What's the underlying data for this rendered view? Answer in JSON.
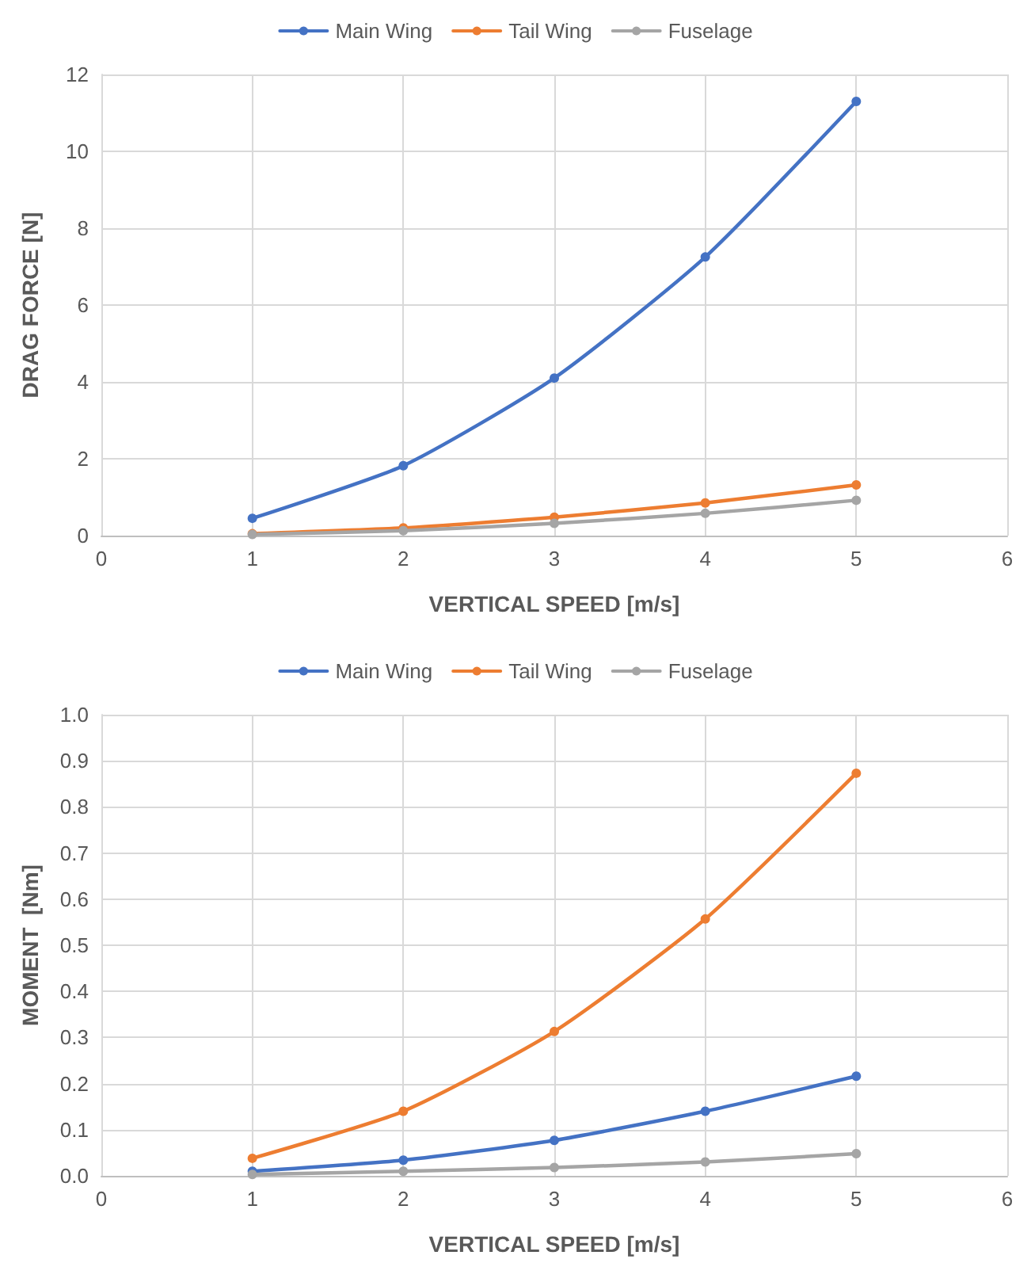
{
  "chart_data": [
    {
      "type": "line",
      "xlabel": "VERTICAL SPEED [m/s]",
      "ylabel": "DRAG FORCE [N]",
      "x": [
        1,
        2,
        3,
        4,
        5
      ],
      "series": [
        {
          "name": "Main Wing",
          "color": "#4472c4",
          "values": [
            0.45,
            1.82,
            4.1,
            7.25,
            11.3
          ]
        },
        {
          "name": "Tail Wing",
          "color": "#ed7d31",
          "values": [
            0.05,
            0.2,
            0.48,
            0.85,
            1.32
          ]
        },
        {
          "name": "Fuselage",
          "color": "#a5a5a5",
          "values": [
            0.03,
            0.13,
            0.32,
            0.58,
            0.92
          ]
        }
      ],
      "xlim": [
        0,
        6
      ],
      "xticks": [
        0,
        1,
        2,
        3,
        4,
        5,
        6
      ],
      "ylim": [
        0,
        12
      ],
      "yticks": [
        0,
        2,
        4,
        6,
        8,
        10,
        12
      ],
      "grid": true,
      "legend": "top",
      "marker": "circle",
      "line_style": "solid"
    },
    {
      "type": "line",
      "xlabel": "VERTICAL SPEED [m/s]",
      "ylabel": "MOMENT  [Nm]",
      "x": [
        1,
        2,
        3,
        4,
        5
      ],
      "series": [
        {
          "name": "Main Wing",
          "color": "#4472c4",
          "values": [
            0.01,
            0.034,
            0.077,
            0.14,
            0.216
          ]
        },
        {
          "name": "Tail Wing",
          "color": "#ed7d31",
          "values": [
            0.038,
            0.14,
            0.313,
            0.557,
            0.873
          ]
        },
        {
          "name": "Fuselage",
          "color": "#a5a5a5",
          "values": [
            0.003,
            0.01,
            0.018,
            0.03,
            0.048
          ]
        }
      ],
      "xlim": [
        0,
        6
      ],
      "xticks": [
        0,
        1,
        2,
        3,
        4,
        5,
        6
      ],
      "ylim": [
        0,
        1
      ],
      "yticks": [
        {
          "value": 0,
          "label": "0.0"
        },
        {
          "value": 0.1,
          "label": "0.1"
        },
        {
          "value": 0.2,
          "label": "0.2"
        },
        {
          "value": 0.3,
          "label": "0.3"
        },
        {
          "value": 0.4,
          "label": "0.4"
        },
        {
          "value": 0.5,
          "label": "0.5"
        },
        {
          "value": 0.6,
          "label": "0.6"
        },
        {
          "value": 0.7,
          "label": "0.7"
        },
        {
          "value": 0.8,
          "label": "0.8"
        },
        {
          "value": 0.9,
          "label": "0.9"
        },
        {
          "value": 1,
          "label": "1.0"
        }
      ],
      "grid": true,
      "legend": "top",
      "marker": "circle",
      "line_style": "solid"
    }
  ]
}
